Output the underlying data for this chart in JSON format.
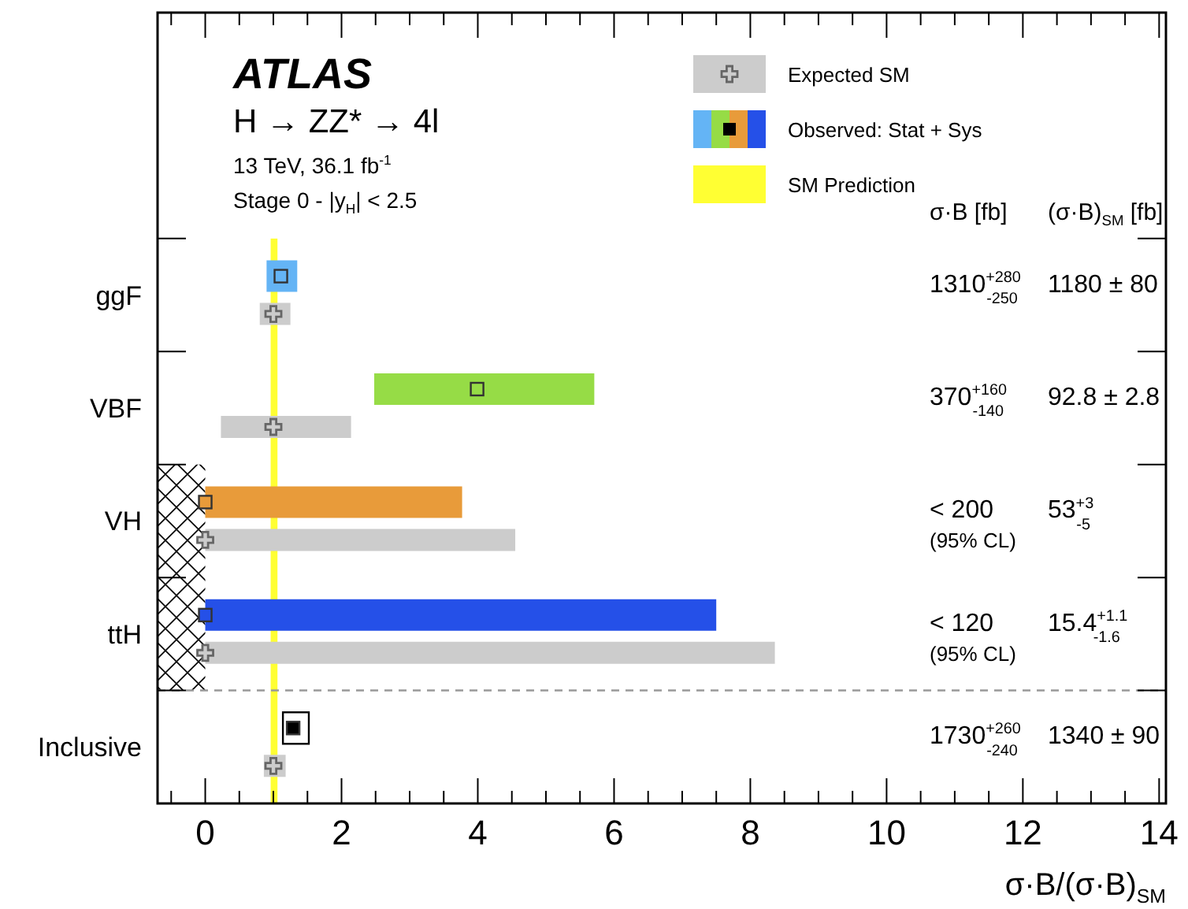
{
  "chart_data": {
    "type": "scatter",
    "orientation": "horizontal",
    "title": "ATLAS",
    "xlabel": "σ·B/(σ·B)$_{SM}$",
    "categories": [
      "ggF",
      "VBF",
      "VH",
      "ttH",
      "Inclusive"
    ],
    "xlim": [
      -0.7,
      14.1
    ],
    "xticks": [
      0,
      {
        "value": 0.5,
        "label": null
      },
      2,
      {
        "value": 1,
        "label": null
      },
      {
        "value": 1.5,
        "label": null
      },
      {
        "value": 2.5,
        "label": null
      },
      {
        "value": 3,
        "label": null
      },
      {
        "value": 3.5,
        "label": null
      },
      4,
      {
        "value": 4.5,
        "label": null
      },
      {
        "value": 5,
        "label": null
      },
      {
        "value": 5.5,
        "label": null
      },
      6,
      {
        "value": 6.5,
        "label": null
      },
      {
        "value": 7,
        "label": null
      },
      {
        "value": 7.5,
        "label": null
      },
      8,
      {
        "value": 8.5,
        "label": null
      },
      {
        "value": 9,
        "label": null
      },
      {
        "value": 9.5,
        "label": null
      },
      10,
      {
        "value": 10.5,
        "label": null
      },
      {
        "value": 11,
        "label": null
      },
      {
        "value": 11.5,
        "label": null
      },
      12,
      {
        "value": 12.5,
        "label": null
      },
      {
        "value": 13,
        "label": null
      },
      {
        "value": 13.5,
        "label": null
      },
      14,
      {
        "value": -0.5,
        "label": null
      }
    ],
    "series": [
      {
        "name": "Observed: Stat + Sys",
        "marker": "square",
        "colors": [
          "#64b4f5",
          "#96dc46",
          "#e89b3a",
          "#2550e8",
          "#000000"
        ],
        "values": [
          1.11,
          3.99,
          0,
          0,
          1.29
        ],
        "errors": [
          [
            0.9,
            1.35
          ],
          [
            2.48,
            5.71
          ],
          [
            0,
            3.77
          ],
          [
            0,
            7.5
          ],
          [
            1.14,
            1.52
          ]
        ]
      },
      {
        "name": "Expected SM",
        "marker": "cross",
        "color": "#cccccc",
        "values": [
          1,
          1,
          0,
          0,
          1
        ],
        "errors": [
          [
            0.8,
            1.25
          ],
          [
            0.23,
            2.14
          ],
          [
            0,
            4.55
          ],
          [
            0,
            8.36
          ],
          [
            0.86,
            1.18
          ]
        ]
      }
    ],
    "bands": [
      {
        "axis": "x",
        "from": 0.96,
        "to": 1.06,
        "color": "#ffff33",
        "label": "SM Prediction"
      }
    ],
    "legend": "top right",
    "annotations": [
      "H → ZZ* → 4l",
      "13 TeV, 36.1 fb$^{-1}$",
      "Stage 0 - |y$_{H}$| < 2.5",
      "σ·B [fb]",
      "(σ·B)$_{SM}$ [fb]",
      "1310$^{+280}$$_{-250}$",
      "1180 ± 80",
      "370$^{+160}$$_{-140}$",
      "92.8 ± 2.8",
      "< 200",
      "(95% CL)",
      "53$^{+3}$$_{-5}$",
      "< 120",
      "(95% CL)",
      "15.4$^{+1.1}$$_{-1.6}$",
      "1730$^{+260}$$_{-240}$",
      "1340 ± 90"
    ]
  }
}
